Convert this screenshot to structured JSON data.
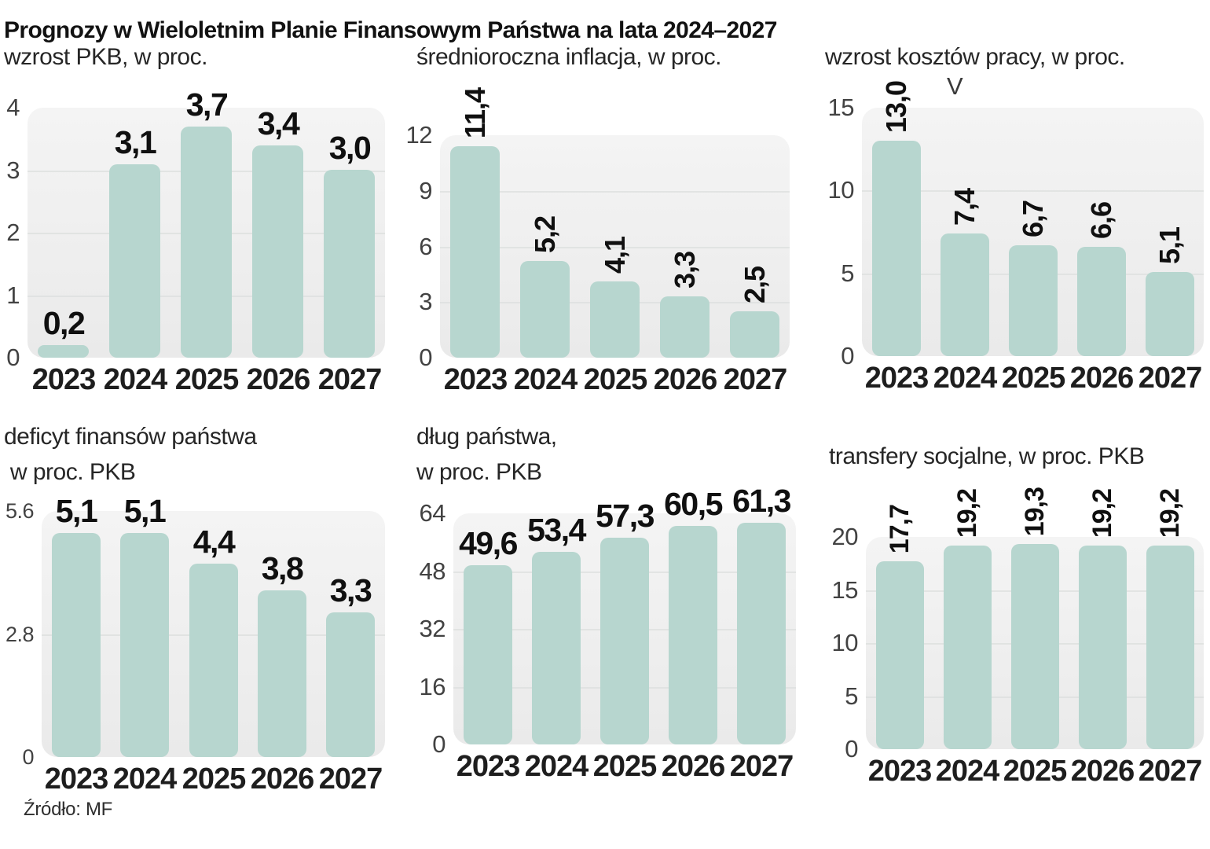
{
  "page": {
    "title": "Prognozy w Wieloletnim Planie Finansowym Państwa na lata 2024–2027",
    "source": "Źródło: MF"
  },
  "colors": {
    "bar": "#b7d6cf",
    "plot_background": "#efefef",
    "gridline": "#dcdfde",
    "value_label": "#101010",
    "tick_label": "#424242"
  },
  "chart_data": [
    {
      "id": "gdp-growth",
      "type": "bar",
      "title": "wzrost PKB, w proc.",
      "subtitle_lines": [
        "wzrost PKB, w proc."
      ],
      "categories": [
        "2023",
        "2024",
        "2025",
        "2026",
        "2027"
      ],
      "values": [
        0.2,
        3.1,
        3.7,
        3.4,
        3.0
      ],
      "value_labels": [
        "0,2",
        "3,1",
        "3,7",
        "3,4",
        "3,0"
      ],
      "yticks": [
        "4",
        "3",
        "2",
        "1",
        "0"
      ],
      "ylim": [
        0,
        4
      ],
      "grid": true,
      "rotated_value_labels": false
    },
    {
      "id": "inflation",
      "type": "bar",
      "title": "średnioroczna inflacja, w proc.",
      "subtitle_lines": [
        "średnioroczna inflacja, w proc."
      ],
      "categories": [
        "2023",
        "2024",
        "2025",
        "2026",
        "2027"
      ],
      "values": [
        11.4,
        5.2,
        4.1,
        3.3,
        2.5
      ],
      "value_labels": [
        "11,4",
        "5,2",
        "4,1",
        "3,3",
        "2,5"
      ],
      "yticks": [
        "12",
        "9",
        "6",
        "3",
        "0"
      ],
      "ylim": [
        0,
        12
      ],
      "grid": true,
      "rotated_value_labels": true
    },
    {
      "id": "labor-costs",
      "type": "bar",
      "title": "wzrost kosztów pracy, w proc.",
      "subtitle_lines": [
        "wzrost kosztów pracy, w proc."
      ],
      "categories": [
        "2023",
        "2024",
        "2025",
        "2026",
        "2027"
      ],
      "values": [
        13.0,
        7.4,
        6.7,
        6.6,
        5.1
      ],
      "value_labels": [
        "13,0",
        "7,4",
        "6,7",
        "6,6",
        "5,1"
      ],
      "yticks": [
        "15",
        "10",
        "5",
        "0"
      ],
      "ylim": [
        0,
        15
      ],
      "grid": true,
      "rotated_value_labels": true,
      "annotation": "V"
    },
    {
      "id": "deficit",
      "type": "bar",
      "title": "deficyt finansów państwa w proc. PKB",
      "subtitle_lines": [
        "deficyt finansów państwa",
        " w proc. PKB"
      ],
      "categories": [
        "2023",
        "2024",
        "2025",
        "2026",
        "2027"
      ],
      "values": [
        5.1,
        5.1,
        4.4,
        3.8,
        3.3
      ],
      "value_labels": [
        "5,1",
        "5,1",
        "4,4",
        "3,8",
        "3,3"
      ],
      "yticks": [
        "5.6",
        "2.8",
        "0"
      ],
      "ylim": [
        0,
        5.6
      ],
      "grid": true,
      "rotated_value_labels": false
    },
    {
      "id": "debt",
      "type": "bar",
      "title": "dług państwa, w proc. PKB",
      "subtitle_lines": [
        "dług państwa,",
        "w proc. PKB"
      ],
      "categories": [
        "2023",
        "2024",
        "2025",
        "2026",
        "2027"
      ],
      "values": [
        49.6,
        53.4,
        57.3,
        60.5,
        61.3
      ],
      "value_labels": [
        "49,6",
        "53,4",
        "57,3",
        "60,5",
        "61,3"
      ],
      "yticks": [
        "64",
        "48",
        "32",
        "16",
        "0"
      ],
      "ylim": [
        0,
        64
      ],
      "grid": true,
      "rotated_value_labels": false
    },
    {
      "id": "social-transfers",
      "type": "bar",
      "title": "transfery socjalne, w proc. PKB",
      "subtitle_lines": [
        "transfery socjalne, w proc. PKB"
      ],
      "categories": [
        "2023",
        "2024",
        "2025",
        "2026",
        "2027"
      ],
      "values": [
        17.7,
        19.2,
        19.3,
        19.2,
        19.2
      ],
      "value_labels": [
        "17,7",
        "19,2",
        "19,3",
        "19,2",
        "19,2"
      ],
      "yticks": [
        "20",
        "15",
        "10",
        "5",
        "0"
      ],
      "ylim": [
        0,
        20
      ],
      "grid": true,
      "rotated_value_labels": true
    }
  ]
}
